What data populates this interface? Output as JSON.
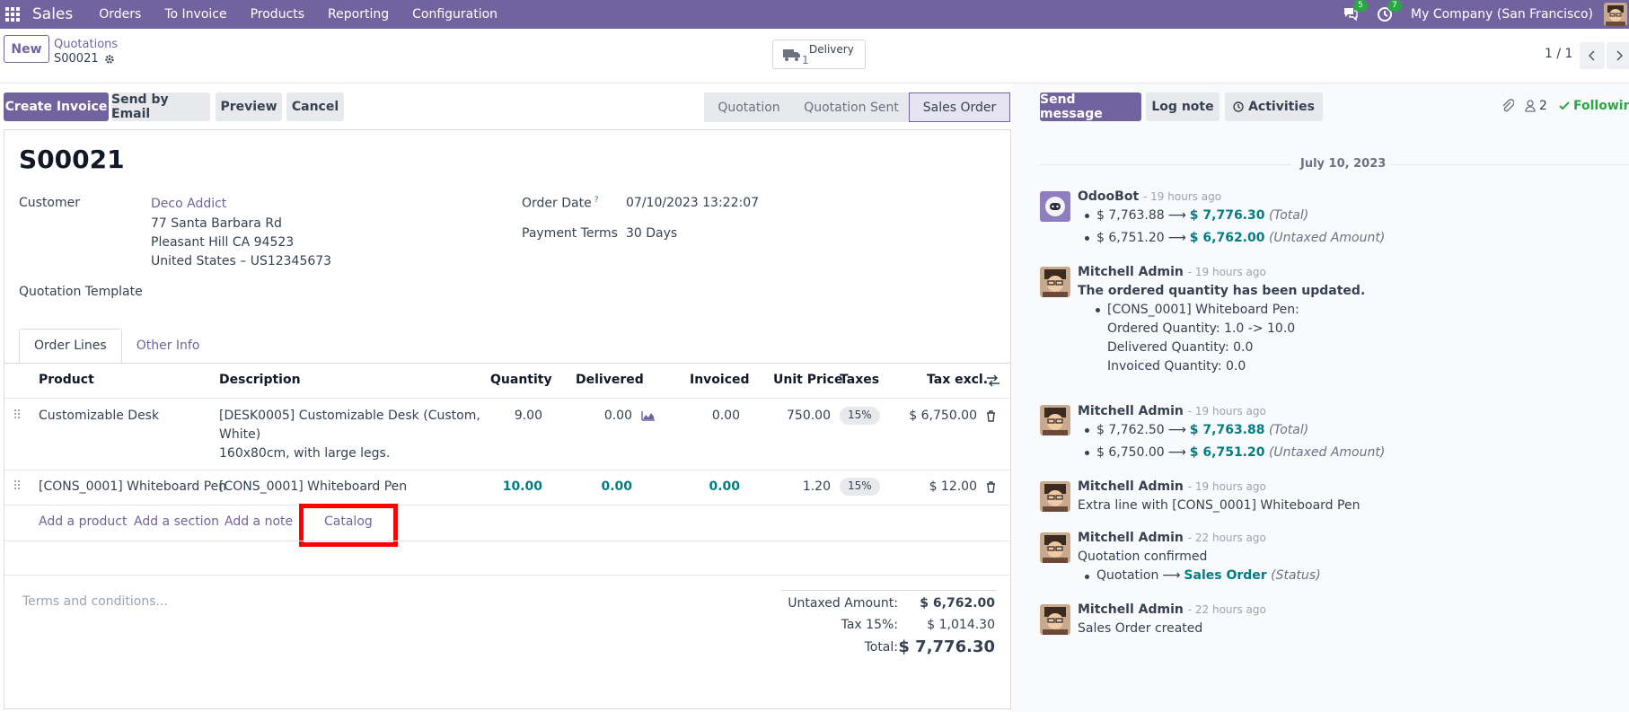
{
  "topnav": {
    "app": "Sales",
    "menu": [
      "Orders",
      "To Invoice",
      "Products",
      "Reporting",
      "Configuration"
    ],
    "messages_count": "5",
    "activities_count": "7",
    "company": "My Company (San Francisco)"
  },
  "control": {
    "new_label": "New",
    "breadcrumb": "Quotations",
    "record": "S00021",
    "delivery_label": "Delivery",
    "delivery_count": "1",
    "pager": "1 / 1"
  },
  "actions": {
    "create_invoice": "Create Invoice",
    "send_by_email": "Send by Email",
    "preview": "Preview",
    "cancel": "Cancel"
  },
  "statusbar": [
    "Quotation",
    "Quotation Sent",
    "Sales Order"
  ],
  "form": {
    "title": "S00021",
    "customer_label": "Customer",
    "customer_name": "Deco Addict",
    "address": [
      "77 Santa Barbara Rd",
      "Pleasant Hill CA 94523",
      "United States – US12345673"
    ],
    "quotation_template_label": "Quotation Template",
    "order_date_label": "Order Date",
    "order_date_help": "?",
    "order_date": "07/10/2023 13:22:07",
    "payment_terms_label": "Payment Terms",
    "payment_terms": "30 Days"
  },
  "tabs": [
    "Order Lines",
    "Other Info"
  ],
  "lines": {
    "headers": [
      "Product",
      "Description",
      "Quantity",
      "Delivered",
      "Invoiced",
      "Unit Price",
      "Taxes",
      "Tax excl."
    ],
    "rows": [
      {
        "product": "Customizable Desk",
        "description": [
          "[DESK0005] Customizable Desk (Custom,",
          "White)",
          "160x80cm, with large legs."
        ],
        "quantity": "9.00",
        "delivered": "0.00",
        "invoiced": "0.00",
        "unit_price": "750.00",
        "taxes": "15%",
        "subtotal": "$ 6,750.00"
      },
      {
        "product": "[CONS_0001] Whiteboard Pen",
        "description": [
          "[CONS_0001] Whiteboard Pen"
        ],
        "quantity": "10.00",
        "delivered": "0.00",
        "invoiced": "0.00",
        "unit_price": "1.20",
        "taxes": "15%",
        "subtotal": "$ 12.00"
      }
    ],
    "add_product": "Add a product",
    "add_section": "Add a section",
    "add_note": "Add a note",
    "catalog": "Catalog"
  },
  "footer": {
    "terms_placeholder": "Terms and conditions...",
    "untaxed_label": "Untaxed Amount:",
    "untaxed_value": "$ 6,762.00",
    "tax_label": "Tax 15%:",
    "tax_value": "$ 1,014.30",
    "total_label": "Total:",
    "total_value": "$ 7,776.30"
  },
  "chatter": {
    "send_message": "Send message",
    "log_note": "Log note",
    "activities": "Activities",
    "followers": "2",
    "following": "Following",
    "date": "July 10, 2023",
    "messages": [
      {
        "author": "OdooBot",
        "ago": "- 19 hours ago",
        "changes": [
          {
            "old": "$ 7,763.88",
            "new": "$ 7,776.30",
            "field": "(Total)"
          },
          {
            "old": "$ 6,751.20",
            "new": "$ 6,762.00",
            "field": "(Untaxed Amount)"
          }
        ]
      },
      {
        "author": "Mitchell Admin",
        "ago": "- 19 hours ago",
        "body_title": "The ordered quantity has been updated.",
        "body_lines": [
          "[CONS_0001] Whiteboard Pen:",
          "Ordered Quantity: 1.0 -> 10.0",
          "Delivered Quantity: 0.0",
          "Invoiced Quantity: 0.0"
        ]
      },
      {
        "author": "Mitchell Admin",
        "ago": "- 19 hours ago",
        "changes": [
          {
            "old": "$ 7,762.50",
            "new": "$ 7,763.88",
            "field": "(Total)"
          },
          {
            "old": "$ 6,750.00",
            "new": "$ 6,751.20",
            "field": "(Untaxed Amount)"
          }
        ]
      },
      {
        "author": "Mitchell Admin",
        "ago": "- 19 hours ago",
        "body": "Extra line with [CONS_0001] Whiteboard Pen"
      },
      {
        "author": "Mitchell Admin",
        "ago": "- 22 hours ago",
        "body": "Quotation confirmed",
        "changes": [
          {
            "old": "Quotation",
            "new": "Sales Order",
            "field": "(Status)"
          }
        ]
      },
      {
        "author": "Mitchell Admin",
        "ago": "- 22 hours ago",
        "body": "Sales Order created"
      }
    ]
  }
}
